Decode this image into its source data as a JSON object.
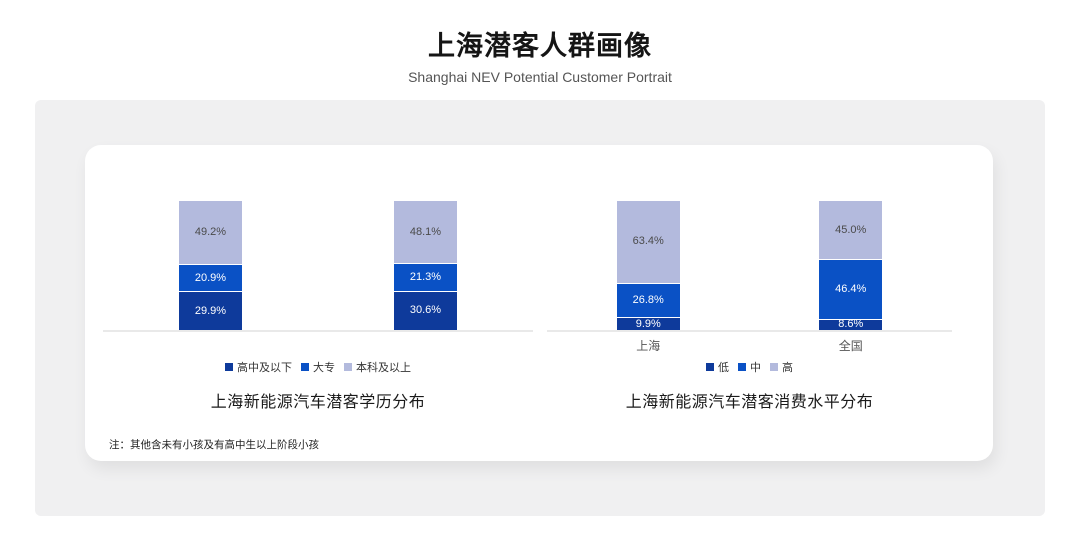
{
  "header": {
    "title": "上海潜客人群画像",
    "subtitle": "Shanghai NEV Potential Customer Portrait"
  },
  "note": "注：其他含未有小孩及有高中生以上阶段小孩",
  "colors": {
    "segment_dark": "#0e3a9b",
    "segment_mid": "#0a51c5",
    "segment_light": "#b3badd",
    "panel_bg": "#f0f0f1",
    "axis_line": "#e9e9e9",
    "label_on_dark": "#ffffff",
    "label_on_light": "#4a4a4a"
  },
  "chart_data": [
    {
      "type": "bar",
      "stacked": true,
      "title": "上海新能源汽车潜客学历分布",
      "xlabel": "",
      "ylabel": "",
      "ylim": [
        0,
        100
      ],
      "grid": false,
      "legend_position": "bottom",
      "value_suffix": "%",
      "categories": [
        "",
        ""
      ],
      "series": [
        {
          "name": "高中及以下",
          "color": "#0e3a9b",
          "label_color": "#ffffff",
          "values": [
            29.9,
            30.6
          ]
        },
        {
          "name": "大专",
          "color": "#0a51c5",
          "label_color": "#ffffff",
          "values": [
            20.9,
            21.3
          ]
        },
        {
          "name": "本科及以上",
          "color": "#b3badd",
          "label_color": "#4a4a4a",
          "values": [
            49.2,
            48.1
          ]
        }
      ]
    },
    {
      "type": "bar",
      "stacked": true,
      "title": "上海新能源汽车潜客消费水平分布",
      "xlabel": "",
      "ylabel": "",
      "ylim": [
        0,
        100
      ],
      "grid": false,
      "legend_position": "bottom",
      "value_suffix": "%",
      "categories": [
        "上海",
        "全国"
      ],
      "series": [
        {
          "name": "低",
          "color": "#0e3a9b",
          "label_color": "#ffffff",
          "values": [
            9.9,
            8.6
          ]
        },
        {
          "name": "中",
          "color": "#0a51c5",
          "label_color": "#ffffff",
          "values": [
            26.8,
            46.4
          ]
        },
        {
          "name": "高",
          "color": "#b3badd",
          "label_color": "#4a4a4a",
          "values": [
            63.4,
            45.0
          ]
        }
      ]
    }
  ]
}
